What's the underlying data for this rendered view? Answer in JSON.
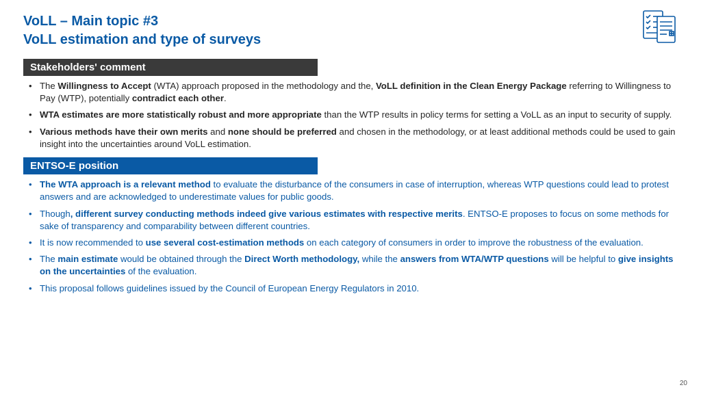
{
  "title": {
    "line1": "VoLL – Main topic #3",
    "line2": "VoLL estimation and type of surveys"
  },
  "icon_color": "#0a5aa5",
  "section1": {
    "header": "Stakeholders' comment",
    "header_bg": "#3a3a3a",
    "bullets": [
      {
        "parts": [
          {
            "t": "The ",
            "b": 0
          },
          {
            "t": "Willingness to Accept",
            "b": 1
          },
          {
            "t": " (WTA) approach proposed in the methodology and the, ",
            "b": 0
          },
          {
            "t": "VoLL definition in the Clean Energy Package",
            "b": 1
          },
          {
            "t": " referring to Willingness to Pay (WTP), potentially ",
            "b": 0
          },
          {
            "t": "contradict each other",
            "b": 1
          },
          {
            "t": ".",
            "b": 0
          }
        ]
      },
      {
        "parts": [
          {
            "t": "WTA estimates are more statistically robust and more appropriate",
            "b": 1
          },
          {
            "t": " than the WTP results in policy terms for setting a VoLL as an input to security of supply.",
            "b": 0
          }
        ]
      },
      {
        "parts": [
          {
            "t": "Various methods have their own merits",
            "b": 1
          },
          {
            "t": " and ",
            "b": 0
          },
          {
            "t": "none should be preferred",
            "b": 1
          },
          {
            "t": " and chosen in the methodology, or at least additional methods could be used to gain insight into the uncertainties around VoLL estimation.",
            "b": 0
          }
        ]
      }
    ]
  },
  "section2": {
    "header": "ENTSO-E position",
    "header_bg": "#0a5aa5",
    "text_color": "#0a5aa5",
    "bullets": [
      {
        "parts": [
          {
            "t": "The WTA approach is a relevant method",
            "b": 1
          },
          {
            "t": " to evaluate the disturbance of the consumers in case of interruption, whereas WTP questions could lead to protest answers and are acknowledged to underestimate values for public goods.",
            "b": 0
          }
        ]
      },
      {
        "parts": [
          {
            "t": "Though",
            "b": 0
          },
          {
            "t": ", different survey conducting methods indeed give various estimates with respective merits",
            "b": 1
          },
          {
            "t": ". ENTSO-E proposes to focus on some methods for sake of transparency and comparability between different countries.",
            "b": 0
          }
        ]
      },
      {
        "parts": [
          {
            "t": "It is now recommended to ",
            "b": 0
          },
          {
            "t": "use several cost-estimation methods",
            "b": 1
          },
          {
            "t": " on each category of consumers in order to improve the robustness of the evaluation.",
            "b": 0
          }
        ]
      },
      {
        "parts": [
          {
            "t": "The ",
            "b": 0
          },
          {
            "t": "main estimate",
            "b": 1
          },
          {
            "t": " would be obtained through the ",
            "b": 0
          },
          {
            "t": "Direct Worth methodology,",
            "b": 1
          },
          {
            "t": " while the ",
            "b": 0
          },
          {
            "t": "answers from WTA/WTP questions",
            "b": 1
          },
          {
            "t": " will be helpful to ",
            "b": 0
          },
          {
            "t": "give insights on the uncertainties",
            "b": 1
          },
          {
            "t": " of the evaluation.",
            "b": 0
          }
        ]
      },
      {
        "parts": [
          {
            "t": "This proposal follows guidelines issued by the Council of European Energy Regulators in 2010.",
            "b": 0
          }
        ]
      }
    ]
  },
  "page_number": "20"
}
